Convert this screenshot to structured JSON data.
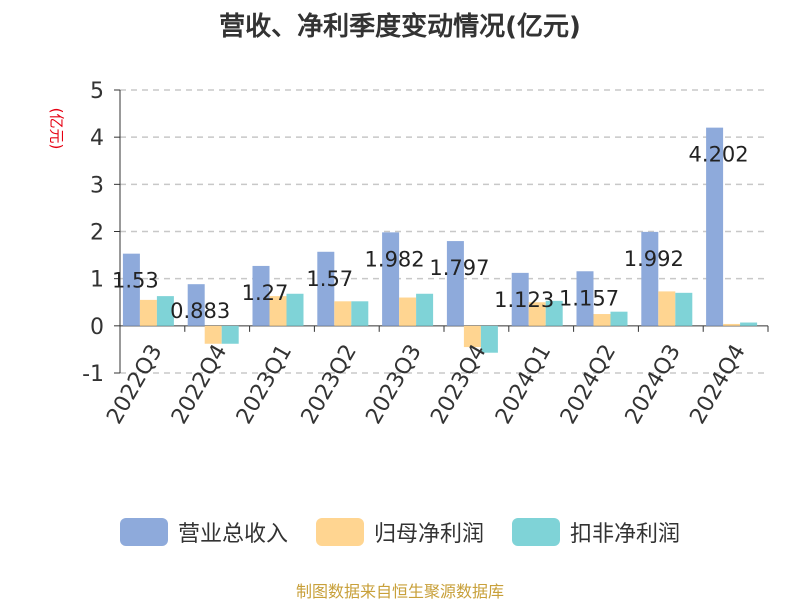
{
  "title": "营收、净利季度变动情况(亿元)",
  "unit_label": "(亿元)",
  "source": "制图数据来自恒生聚源数据库",
  "colors": {
    "revenue": "#8eaadb",
    "net_profit": "#ffd591",
    "deducted_profit": "#7fd3d7",
    "grid": "#c8c8c8",
    "axis": "#333333"
  },
  "chart_data": {
    "type": "bar",
    "title": "营收、净利季度变动情况(亿元)",
    "ylabel": "(亿元)",
    "xlabel": "",
    "ylim": [
      -1,
      5
    ],
    "yticks": [
      -1,
      0,
      1,
      2,
      3,
      4,
      5
    ],
    "grid": true,
    "legend_position": "bottom",
    "categories": [
      "2022Q3",
      "2022Q4",
      "2023Q1",
      "2023Q2",
      "2023Q3",
      "2023Q4",
      "2024Q1",
      "2024Q2",
      "2024Q3",
      "2024Q4"
    ],
    "series": [
      {
        "name": "营业总收入",
        "values": [
          1.53,
          0.883,
          1.27,
          1.57,
          1.982,
          1.797,
          1.123,
          1.157,
          1.992,
          4.202
        ]
      },
      {
        "name": "归母净利润",
        "values": [
          0.55,
          -0.38,
          0.63,
          0.52,
          0.6,
          -0.45,
          0.5,
          0.25,
          0.73,
          0.04
        ]
      },
      {
        "name": "扣非净利润",
        "values": [
          0.63,
          -0.38,
          0.68,
          0.52,
          0.68,
          -0.57,
          0.53,
          0.3,
          0.7,
          0.07
        ]
      }
    ],
    "data_labels": [
      "1.53",
      "0.883",
      "1.27",
      "1.57",
      "1.982",
      "1.797",
      "1.123",
      "1.157",
      "1.992",
      "4.202"
    ]
  }
}
